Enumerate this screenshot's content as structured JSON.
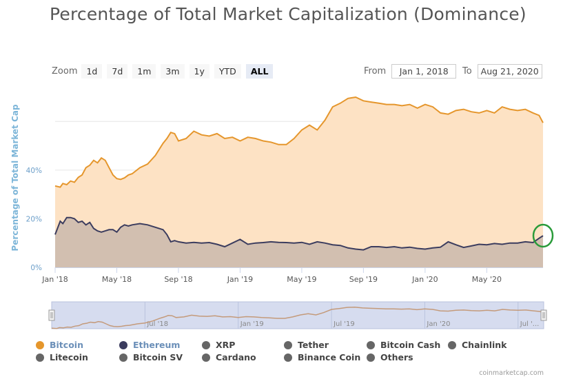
{
  "page": {
    "title": "Percentage of Total Market Capitalization (Dominance)",
    "credit": "coinmarketcap.com"
  },
  "zoom": {
    "label": "Zoom",
    "buttons": [
      "1d",
      "7d",
      "1m",
      "3m",
      "1y",
      "YTD",
      "ALL"
    ],
    "active": "ALL"
  },
  "range": {
    "from_label": "From",
    "from_value": "Jan 1, 2018",
    "to_label": "To",
    "to_value": "Aug 21, 2020"
  },
  "colors": {
    "bitcoin_line": "#e5962c",
    "bitcoin_fill": "#fde2c4",
    "ethereum_line": "#3b3c5e",
    "ethereum_fill": "#d2bfb0",
    "highlight_circle": "#2a9b3a",
    "navigator_fill": "#d6dcef"
  },
  "chart_data": {
    "type": "area",
    "title": "Percentage of Total Market Capitalization (Dominance)",
    "ylabel": "Percentage of Total Market Cap",
    "ylim": [
      0,
      70
    ],
    "y_ticks": [
      0,
      20,
      40
    ],
    "y_tick_labels": [
      "0%",
      "20%",
      "40%"
    ],
    "x_tick_labels": [
      "Jan '18",
      "May '18",
      "Sep '18",
      "Jan '19",
      "May '19",
      "Sep '19",
      "Jan '20",
      "May '20"
    ],
    "x_tick_months": [
      0,
      4,
      8,
      12,
      16,
      20,
      24,
      28
    ],
    "x_months": [
      0,
      0.33,
      0.5,
      0.75,
      1,
      1.25,
      1.5,
      1.75,
      2,
      2.25,
      2.5,
      2.75,
      3,
      3.25,
      3.5,
      3.75,
      4,
      4.25,
      4.5,
      4.75,
      5,
      5.5,
      6,
      6.5,
      7,
      7.25,
      7.5,
      7.75,
      8,
      8.5,
      9,
      9.5,
      10,
      10.5,
      11,
      11.5,
      12,
      12.5,
      13,
      13.5,
      14,
      14.5,
      15,
      15.5,
      16,
      16.5,
      17,
      17.5,
      18,
      18.5,
      19,
      19.5,
      20,
      20.5,
      21,
      21.5,
      22,
      22.5,
      23,
      23.5,
      24,
      24.5,
      25,
      25.5,
      26,
      26.5,
      27,
      27.5,
      28,
      28.5,
      29,
      29.5,
      30,
      30.5,
      31,
      31.4,
      31.65
    ],
    "series": [
      {
        "name": "Bitcoin",
        "values": [
          33.5,
          33,
          34.5,
          34,
          35.5,
          35,
          37,
          38,
          41,
          42,
          44,
          43,
          45,
          44,
          41,
          38,
          36.5,
          36.2,
          36.8,
          38,
          38.5,
          41,
          42.5,
          46,
          51,
          53,
          55.5,
          55,
          52,
          53,
          56,
          54.5,
          54,
          55,
          53,
          53.5,
          52,
          53.5,
          53,
          52,
          51.5,
          50.5,
          50.5,
          53,
          56.5,
          58.5,
          56.5,
          60.5,
          66,
          67.5,
          69.5,
          70,
          68.5,
          68,
          67.5,
          67,
          67,
          66.5,
          67,
          65.5,
          67,
          66,
          63.5,
          63,
          64.5,
          65,
          64,
          63.5,
          64.5,
          63.5,
          66,
          65,
          64.5,
          65,
          63.5,
          62.5,
          59.5
        ]
      },
      {
        "name": "Ethereum",
        "values": [
          13.5,
          19,
          18,
          20.5,
          20.5,
          20,
          18.5,
          19,
          17.5,
          18.5,
          16,
          15,
          14.5,
          15,
          15.5,
          15.5,
          14.5,
          16.5,
          17.5,
          17,
          17.5,
          18,
          17.5,
          16.5,
          15.5,
          13.5,
          10.5,
          11,
          10.5,
          10,
          10.3,
          10,
          10.2,
          9.5,
          8.5,
          10,
          11.5,
          9.5,
          10,
          10.2,
          10.5,
          10.3,
          10.2,
          10,
          10.3,
          9.5,
          10.5,
          10,
          9.3,
          9,
          8,
          7.5,
          7.2,
          8.5,
          8.5,
          8.2,
          8.5,
          8,
          8.3,
          7.8,
          7.5,
          8,
          8.3,
          10.5,
          9.3,
          8.2,
          8.8,
          9.5,
          9.3,
          9.8,
          9.5,
          10,
          10,
          10.5,
          10.2,
          12,
          13
        ]
      }
    ],
    "navigator_labels": [
      "Jul '18",
      "Jan '19",
      "Jul '19",
      "Jan '20",
      "Jul '..."
    ],
    "navigator_months": [
      6,
      12,
      18,
      24,
      30
    ]
  },
  "legend": [
    {
      "name": "Bitcoin",
      "color": "#e5962c",
      "text_color": "#6b8fb8"
    },
    {
      "name": "Ethereum",
      "color": "#3b3c5e",
      "text_color": "#6b8fb8"
    },
    {
      "name": "XRP",
      "color": "#666666",
      "text_color": "#444444"
    },
    {
      "name": "Tether",
      "color": "#666666",
      "text_color": "#444444"
    },
    {
      "name": "Bitcoin Cash",
      "color": "#666666",
      "text_color": "#444444"
    },
    {
      "name": "Chainlink",
      "color": "#666666",
      "text_color": "#444444"
    },
    {
      "name": "Litecoin",
      "color": "#666666",
      "text_color": "#444444"
    },
    {
      "name": "Bitcoin SV",
      "color": "#666666",
      "text_color": "#444444"
    },
    {
      "name": "Cardano",
      "color": "#666666",
      "text_color": "#444444"
    },
    {
      "name": "Binance Coin",
      "color": "#666666",
      "text_color": "#444444"
    },
    {
      "name": "Others",
      "color": "#666666",
      "text_color": "#444444"
    }
  ]
}
